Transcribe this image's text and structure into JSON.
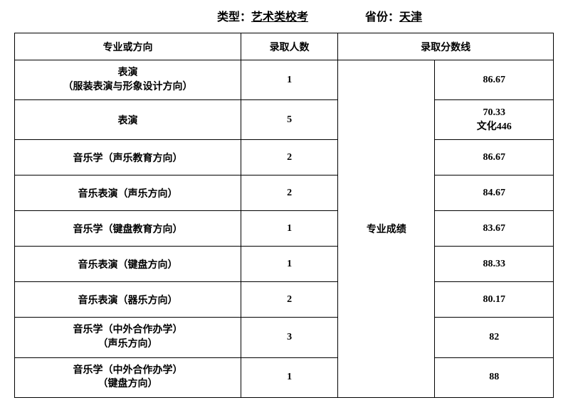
{
  "header": {
    "type_label": "类型：",
    "type_value": "艺术类校考",
    "province_label": "省份：",
    "province_value": "天津"
  },
  "table": {
    "columns": {
      "major": "专业或方向",
      "count": "录取人数",
      "score": "录取分数线"
    },
    "score_group_label": "专业成绩",
    "rows": [
      {
        "major_line1": "表演",
        "major_line2": "（服装表演与形象设计方向）",
        "count": "1",
        "score_line1": "86.67",
        "score_line2": ""
      },
      {
        "major_line1": "表演",
        "major_line2": "",
        "count": "5",
        "score_line1": "70.33",
        "score_line2": "文化446"
      },
      {
        "major_line1": "音乐学（声乐教育方向）",
        "major_line2": "",
        "count": "2",
        "score_line1": "86.67",
        "score_line2": ""
      },
      {
        "major_line1": "音乐表演（声乐方向）",
        "major_line2": "",
        "count": "2",
        "score_line1": "84.67",
        "score_line2": ""
      },
      {
        "major_line1": "音乐学（键盘教育方向）",
        "major_line2": "",
        "count": "1",
        "score_line1": "83.67",
        "score_line2": ""
      },
      {
        "major_line1": "音乐表演（键盘方向）",
        "major_line2": "",
        "count": "1",
        "score_line1": "88.33",
        "score_line2": ""
      },
      {
        "major_line1": "音乐表演（器乐方向）",
        "major_line2": "",
        "count": "2",
        "score_line1": "80.17",
        "score_line2": ""
      },
      {
        "major_line1": "音乐学（中外合作办学）",
        "major_line2": "（声乐方向）",
        "count": "3",
        "score_line1": "82",
        "score_line2": ""
      },
      {
        "major_line1": "音乐学（中外合作办学）",
        "major_line2": "（键盘方向）",
        "count": "1",
        "score_line1": "88",
        "score_line2": ""
      }
    ]
  },
  "style": {
    "font_family": "SimSun",
    "border_color": "#000000",
    "background_color": "#ffffff",
    "text_color": "#000000",
    "header_fontsize": 16,
    "cell_fontsize": 14
  }
}
